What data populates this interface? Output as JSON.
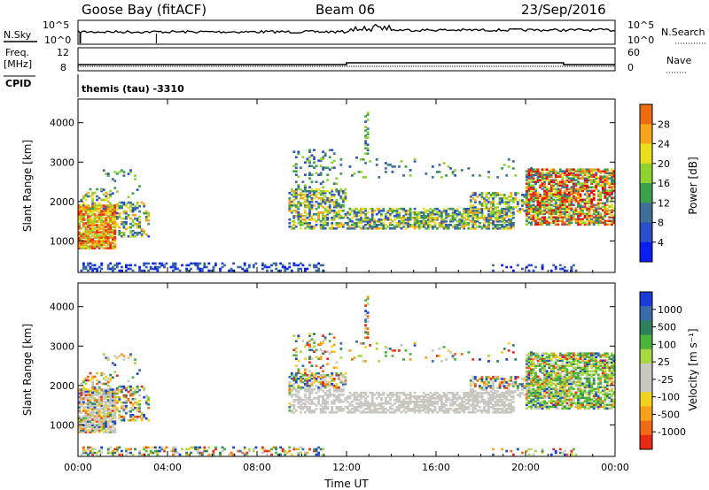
{
  "header": {
    "station": "Goose Bay (fitACF)",
    "beam": "Beam 06",
    "date": "23/Sep/2016"
  },
  "top_panels": {
    "nsky_label": "N.Sky",
    "nsearch_label": "N.Search",
    "noise_ticks": [
      "10^5",
      "10^0"
    ],
    "freq_label_line1": "Freq.",
    "freq_label_line2": "[MHz]",
    "freq_ticks": [
      "12",
      "8"
    ],
    "nave_label": "Nave",
    "nave_ticks": [
      "60",
      "0"
    ],
    "cpid_label": "CPID",
    "cpid_text": "themis (tau) -3310"
  },
  "colors": {
    "power_scale": [
      "#0a1ef0",
      "#2a4fc8",
      "#3f6f96",
      "#3aa04a",
      "#8ed32e",
      "#e9df1c",
      "#f7a51a",
      "#f06a12",
      "#e72a16",
      "#f00000"
    ],
    "velocity_scale": [
      "#1a3cd8",
      "#3a6aa8",
      "#2e7f5c",
      "#4bb23b",
      "#a8d840",
      "#c8c8c0",
      "#c8c8c0",
      "#f3d21e",
      "#f7a01a",
      "#ef6a14",
      "#e82a16"
    ],
    "ground_scatter": "#c8c8c0"
  },
  "chart_data": [
    {
      "type": "heatmap",
      "name": "Power",
      "ylabel": "Slant Range [km]",
      "yticks": [
        "1000",
        "2000",
        "3000",
        "4000"
      ],
      "ylim": [
        200,
        4600
      ],
      "xticks": [
        "00:00",
        "04:00",
        "08:00",
        "12:00",
        "16:00",
        "20:00",
        "00:00"
      ],
      "xlim_hours": [
        0,
        24
      ],
      "colorbar_label": "Power [dB]",
      "colorbar_ticks": [
        "28",
        "24",
        "20",
        "16",
        "12",
        "8",
        "4"
      ],
      "colorbar_range": [
        0,
        30
      ]
    },
    {
      "type": "heatmap",
      "name": "Velocity",
      "ylabel": "Slant Range [km]",
      "yticks": [
        "1000",
        "2000",
        "3000",
        "4000"
      ],
      "ylim": [
        200,
        4600
      ],
      "xticks": [
        "00:00",
        "04:00",
        "08:00",
        "12:00",
        "16:00",
        "20:00",
        "00:00"
      ],
      "xlabel": "Time UT",
      "xlim_hours": [
        0,
        24
      ],
      "colorbar_label": "Velocity [m s⁻¹]",
      "colorbar_ticks": [
        "1000",
        "500",
        "100",
        "25",
        "-25",
        "-100",
        "-500",
        "-1000"
      ]
    }
  ]
}
